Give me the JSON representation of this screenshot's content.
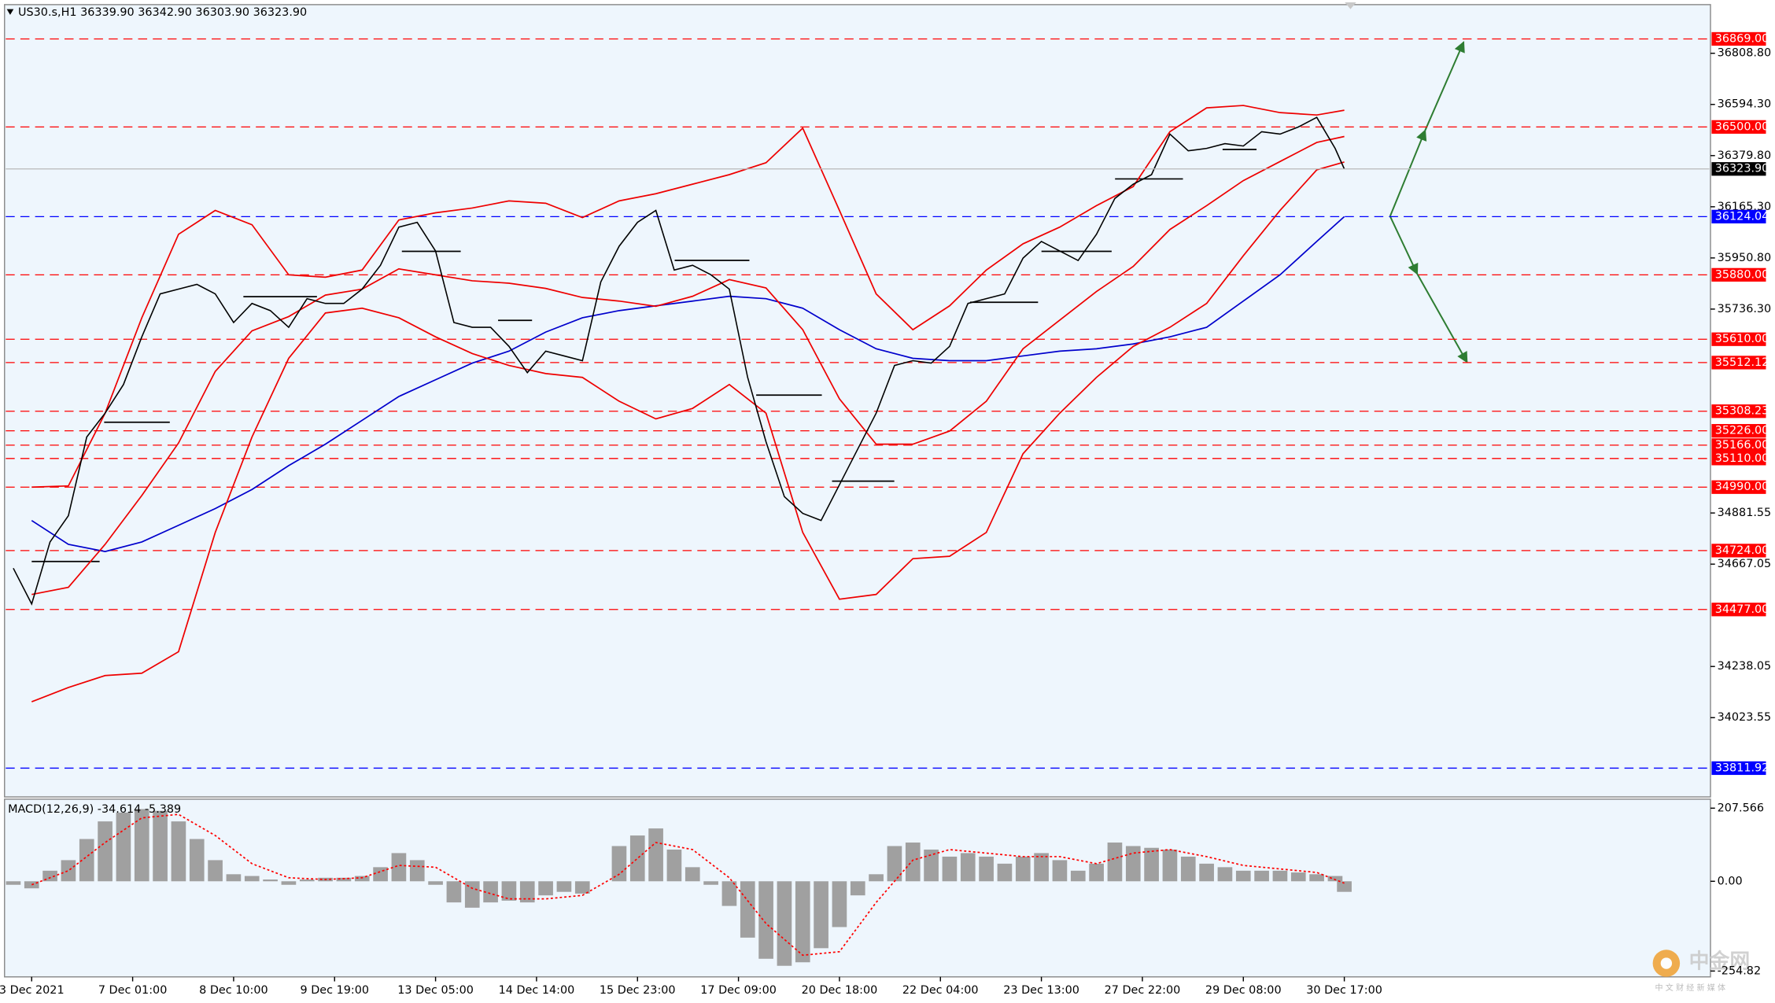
{
  "header": "US30.s,H1  36339.90 36342.90 36303.90 36323.90",
  "watermark": {
    "title": "中金网",
    "subtitle": "中 文 财 经 新 媒 体"
  },
  "chart_data": [
    {
      "type": "line",
      "xlim": [
        -8.5,
        548.3
      ],
      "xticks": [
        {
          "value": 0,
          "label": "3 Dec 2021"
        },
        {
          "value": 33,
          "label": "7 Dec 01:00"
        },
        {
          "value": 66,
          "label": "8 Dec 10:00"
        },
        {
          "value": 99,
          "label": "9 Dec 19:00"
        },
        {
          "value": 132,
          "label": "13 Dec 05:00"
        },
        {
          "value": 165,
          "label": "14 Dec 14:00"
        },
        {
          "value": 198,
          "label": "15 Dec 23:00"
        },
        {
          "value": 231,
          "label": "17 Dec 09:00"
        },
        {
          "value": 264,
          "label": "20 Dec 18:00"
        },
        {
          "value": 297,
          "label": "22 Dec 04:00"
        },
        {
          "value": 330,
          "label": "23 Dec 13:00"
        },
        {
          "value": 363,
          "label": "27 Dec 22:00"
        },
        {
          "value": 396,
          "label": "29 Dec 08:00"
        },
        {
          "value": 429,
          "label": "30 Dec 17:00"
        }
      ],
      "ylim": [
        33696,
        37008
      ],
      "yticks": [
        {
          "value": 36808.8,
          "label": "36808.80"
        },
        {
          "value": 36594.3,
          "label": "36594.30"
        },
        {
          "value": 36379.8,
          "label": "36379.80"
        },
        {
          "value": 36165.3,
          "label": "36165.30"
        },
        {
          "value": 35950.8,
          "label": "35950.80"
        },
        {
          "value": 35736.3,
          "label": "35736.30"
        },
        {
          "value": 34881.55,
          "label": "34881.55"
        },
        {
          "value": 34667.05,
          "label": "34667.05"
        },
        {
          "value": 34238.05,
          "label": "34238.05"
        },
        {
          "value": 34023.55,
          "label": "34023.55"
        }
      ],
      "grid": false,
      "levels": [
        {
          "value": 36869,
          "label": "36869.00",
          "color": "#ff0000"
        },
        {
          "value": 36500,
          "label": "36500.00",
          "color": "#ff0000"
        },
        {
          "value": 36124.04,
          "label": "36124.04",
          "color": "#0000ff"
        },
        {
          "value": 35880,
          "label": "35880.00",
          "color": "#ff0000"
        },
        {
          "value": 35610,
          "label": "35610.00",
          "color": "#ff0000"
        },
        {
          "value": 35512.12,
          "label": "35512.12",
          "color": "#ff0000"
        },
        {
          "value": 35308.23,
          "label": "35308.23",
          "color": "#ff0000"
        },
        {
          "value": 35226,
          "label": "35226.00",
          "color": "#ff0000"
        },
        {
          "value": 35166,
          "label": "35166.00",
          "color": "#ff0000"
        },
        {
          "value": 35110,
          "label": "35110.00",
          "color": "#ff0000"
        },
        {
          "value": 34990,
          "label": "34990.00",
          "color": "#ff0000"
        },
        {
          "value": 34724,
          "label": "34724.00",
          "color": "#ff0000"
        },
        {
          "value": 34477,
          "label": "34477.00",
          "color": "#ff0000"
        },
        {
          "value": 33811.92,
          "label": "33811.92",
          "color": "#0000ff"
        }
      ],
      "current": {
        "value": 36323.9,
        "label": "36323.90",
        "color": "#000000"
      },
      "series": [
        {
          "color": "#0000cc",
          "x": [
            0,
            12,
            24,
            36,
            48,
            60,
            72,
            84,
            96,
            108,
            120,
            132,
            144,
            156,
            168,
            180,
            192,
            204,
            216,
            228,
            240,
            252,
            264,
            276,
            288,
            300,
            312,
            324,
            336,
            348,
            360,
            372,
            384,
            396,
            408,
            420,
            429
          ],
          "values": [
            34850,
            34750,
            34720,
            34760,
            34830,
            34900,
            34980,
            35080,
            35170,
            35270,
            35370,
            35440,
            35510,
            35560,
            35640,
            35700,
            35730,
            35750,
            35770,
            35790,
            35780,
            35740,
            35650,
            35570,
            35530,
            35520,
            35520,
            35540,
            35560,
            35570,
            35590,
            35620,
            35660,
            35770,
            35880,
            36020,
            36124
          ]
        },
        {
          "color": "#ee0000",
          "x": [
            0,
            12,
            24,
            36,
            48,
            60,
            72,
            84,
            96,
            108,
            120,
            132,
            144,
            156,
            168,
            180,
            192,
            204,
            216,
            228,
            240,
            252,
            264,
            276,
            288,
            300,
            312,
            324,
            336,
            348,
            360,
            372,
            384,
            396,
            408,
            420,
            429
          ],
          "values": [
            34990,
            34995,
            35300,
            35700,
            36050,
            36150,
            36090,
            35880,
            35870,
            35900,
            36110,
            36140,
            36160,
            36190,
            36180,
            36120,
            36190,
            36220,
            36260,
            36300,
            36350,
            36495,
            36150,
            35800,
            35650,
            35750,
            35900,
            36010,
            36080,
            36170,
            36250,
            36480,
            36580,
            36590,
            36560,
            36550,
            36570
          ]
        },
        {
          "color": "#ee0000",
          "x": [
            0,
            12,
            24,
            36,
            48,
            60,
            72,
            84,
            96,
            108,
            120,
            132,
            144,
            156,
            168,
            180,
            192,
            204,
            216,
            228,
            240,
            252,
            264,
            276,
            288,
            300,
            312,
            324,
            336,
            348,
            360,
            372,
            384,
            396,
            408,
            420,
            429
          ],
          "values": [
            34540,
            34570,
            34750,
            34955,
            35175,
            35475,
            35645,
            35705,
            35795,
            35820,
            35905,
            35880,
            35855,
            35845,
            35823,
            35785,
            35770,
            35748,
            35790,
            35860,
            35825,
            35650,
            35360,
            35170,
            35170,
            35225,
            35350,
            35570,
            35690,
            35810,
            35915,
            36070,
            36170,
            36275,
            36355,
            36435,
            36460
          ]
        },
        {
          "color": "#ee0000",
          "x": [
            0,
            12,
            24,
            36,
            48,
            60,
            72,
            84,
            96,
            108,
            120,
            132,
            144,
            156,
            168,
            180,
            192,
            204,
            216,
            228,
            240,
            252,
            264,
            276,
            288,
            300,
            312,
            324,
            336,
            348,
            360,
            372,
            384,
            396,
            408,
            420,
            429
          ],
          "values": [
            34090,
            34150,
            34200,
            34210,
            34300,
            34800,
            35200,
            35530,
            35720,
            35740,
            35700,
            35620,
            35550,
            35500,
            35466,
            35450,
            35350,
            35276,
            35320,
            35420,
            35300,
            34800,
            34520,
            34540,
            34690,
            34700,
            34800,
            35130,
            35300,
            35450,
            35580,
            35660,
            35760,
            35960,
            36150,
            36320,
            36353
          ]
        },
        {
          "color": "#000000",
          "x": [
            -6,
            0,
            6,
            12,
            18,
            24,
            30,
            36,
            42,
            48,
            54,
            60,
            66,
            72,
            78,
            84,
            90,
            96,
            102,
            108,
            114,
            120,
            126,
            132,
            138,
            144,
            150,
            156,
            162,
            168,
            174,
            180,
            186,
            192,
            198,
            204,
            210,
            216,
            222,
            228,
            234,
            240,
            246,
            252,
            258,
            264,
            270,
            276,
            282,
            288,
            294,
            300,
            306,
            312,
            318,
            324,
            330,
            336,
            342,
            348,
            354,
            360,
            366,
            372,
            378,
            384,
            390,
            396,
            402,
            408,
            414,
            420,
            426,
            429
          ],
          "values": [
            34650,
            34500,
            34760,
            34870,
            35200,
            35300,
            35420,
            35620,
            35800,
            35820,
            35840,
            35800,
            35680,
            35760,
            35730,
            35660,
            35780,
            35760,
            35760,
            35820,
            35920,
            36080,
            36100,
            35980,
            35680,
            35660,
            35660,
            35580,
            35470,
            35560,
            35540,
            35520,
            35850,
            36000,
            36100,
            36150,
            35900,
            35920,
            35880,
            35820,
            35450,
            35180,
            34950,
            34880,
            34850,
            35000,
            35150,
            35300,
            35500,
            35520,
            35510,
            35580,
            35760,
            35780,
            35800,
            35950,
            36020,
            35980,
            35940,
            36050,
            36200,
            36260,
            36300,
            36470,
            36400,
            36410,
            36430,
            36420,
            36480,
            36470,
            36500,
            36540,
            36410,
            36323.9
          ]
        }
      ]
    },
    {
      "type": "bar",
      "title": "MACD(12,26,9) -34.614 -5.389",
      "xlim": [
        -8.5,
        548.3
      ],
      "ylim": [
        -268.2,
        229.9
      ],
      "yticks": [
        207.566,
        {
          "value": 0,
          "label": "0.00"
        },
        -254.82
      ],
      "series": [
        {
          "color": "#a0a0a0",
          "x": [
            -6,
            0,
            6,
            12,
            18,
            24,
            30,
            36,
            42,
            48,
            54,
            60,
            66,
            72,
            78,
            84,
            90,
            96,
            102,
            108,
            114,
            120,
            126,
            132,
            138,
            144,
            150,
            156,
            162,
            168,
            174,
            180,
            186,
            192,
            198,
            204,
            210,
            216,
            222,
            228,
            234,
            240,
            246,
            252,
            258,
            264,
            270,
            276,
            282,
            288,
            294,
            300,
            306,
            312,
            318,
            324,
            330,
            336,
            342,
            348,
            354,
            360,
            366,
            372,
            378,
            384,
            390,
            396,
            402,
            408,
            414,
            420,
            426,
            429
          ],
          "values": [
            -10,
            -20,
            30,
            60,
            120,
            170,
            195,
            205,
            200,
            170,
            120,
            60,
            20,
            15,
            5,
            -10,
            5,
            10,
            10,
            15,
            40,
            80,
            60,
            -10,
            -60,
            -75,
            -60,
            -55,
            -60,
            -40,
            -30,
            -35,
            0,
            100,
            130,
            150,
            90,
            40,
            -10,
            -70,
            -160,
            -220,
            -240,
            -230,
            -190,
            -130,
            -40,
            20,
            100,
            110,
            90,
            70,
            80,
            70,
            50,
            70,
            80,
            60,
            30,
            50,
            110,
            100,
            95,
            90,
            70,
            50,
            40,
            30,
            30,
            30,
            25,
            20,
            15,
            -30
          ]
        },
        {
          "type": "line",
          "color": "#ff0000",
          "dashed": true,
          "x": [
            0,
            12,
            24,
            36,
            48,
            60,
            72,
            84,
            96,
            108,
            120,
            132,
            144,
            156,
            168,
            180,
            192,
            204,
            216,
            228,
            240,
            252,
            264,
            276,
            288,
            300,
            312,
            324,
            336,
            348,
            360,
            372,
            384,
            396,
            408,
            420,
            429
          ],
          "values": [
            -10,
            30,
            110,
            180,
            190,
            130,
            50,
            10,
            5,
            10,
            45,
            40,
            -20,
            -50,
            -50,
            -40,
            20,
            110,
            90,
            10,
            -120,
            -210,
            -200,
            -60,
            60,
            90,
            80,
            70,
            70,
            50,
            80,
            90,
            70,
            45,
            35,
            25,
            -5.389
          ]
        }
      ]
    }
  ]
}
